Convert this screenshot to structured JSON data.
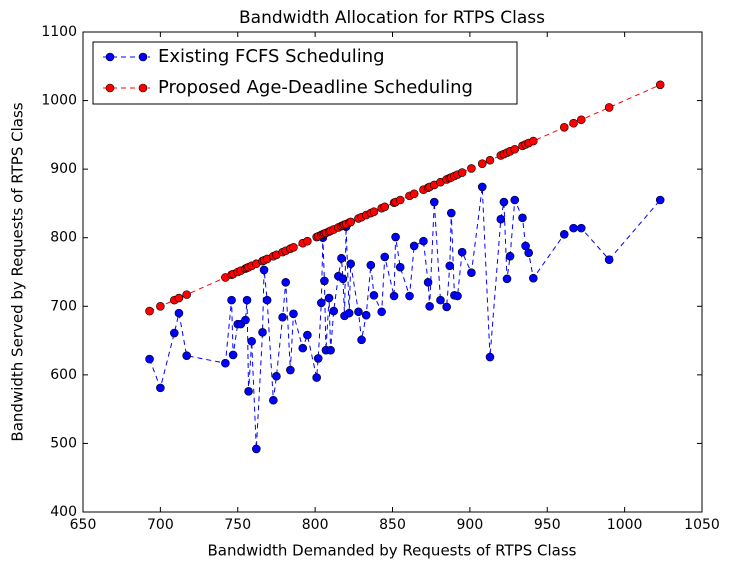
{
  "chart_data": {
    "type": "line",
    "title": "Bandwidth Allocation for RTPS Class",
    "x_label": "Bandwidth Demanded by Requests of RTPS Class",
    "y_label": "Bandwidth Served by Requests of RTPS Class",
    "x": [
      693,
      700,
      709,
      712,
      717,
      742,
      746,
      747,
      750,
      752,
      755,
      756,
      757,
      759,
      762,
      766,
      767,
      769,
      773,
      775,
      779,
      781,
      784,
      786,
      792,
      795,
      801,
      802,
      804,
      805,
      806,
      807,
      809,
      810,
      812,
      815,
      817,
      818,
      819,
      820,
      822,
      823,
      828,
      830,
      833,
      836,
      838,
      843,
      845,
      851,
      852,
      855,
      861,
      864,
      870,
      873,
      874,
      877,
      881,
      885,
      887,
      888,
      890,
      892,
      895,
      901,
      908,
      913,
      920,
      922,
      924,
      926,
      929,
      934,
      936,
      938,
      941,
      961,
      967,
      972,
      990,
      1023
    ],
    "series": [
      {
        "name": "Existing FCFS Scheduling",
        "color": "#0000ff",
        "values": [
          623,
          581,
          661,
          690,
          628,
          617,
          709,
          629,
          674,
          674,
          680,
          709,
          576,
          649,
          492,
          662,
          753,
          709,
          563,
          598,
          684,
          735,
          607,
          689,
          639,
          658,
          596,
          624,
          705,
          800,
          737,
          636,
          712,
          636,
          693,
          744,
          770,
          740,
          686,
          816,
          690,
          762,
          692,
          651,
          687,
          760,
          716,
          692,
          772,
          715,
          801,
          757,
          715,
          788,
          795,
          735,
          700,
          852,
          709,
          699,
          759,
          836,
          716,
          715,
          779,
          749,
          874,
          626,
          827,
          852,
          740,
          773,
          855,
          829,
          788,
          778,
          741,
          805,
          814,
          814,
          768,
          855
        ]
      },
      {
        "name": "Proposed Age-Deadline Scheduling",
        "color": "#ff0000",
        "values": [
          693,
          700,
          709,
          712,
          717,
          742,
          746,
          747,
          750,
          752,
          755,
          756,
          757,
          759,
          762,
          766,
          767,
          769,
          773,
          775,
          779,
          781,
          784,
          786,
          792,
          795,
          801,
          802,
          804,
          805,
          806,
          807,
          809,
          810,
          812,
          815,
          817,
          818,
          819,
          820,
          822,
          823,
          828,
          830,
          833,
          836,
          838,
          843,
          845,
          851,
          852,
          855,
          861,
          864,
          870,
          873,
          874,
          877,
          881,
          885,
          887,
          888,
          890,
          892,
          895,
          901,
          908,
          913,
          920,
          922,
          924,
          926,
          929,
          934,
          936,
          938,
          941,
          961,
          967,
          972,
          990,
          1023
        ]
      }
    ],
    "xlim": [
      650,
      1050
    ],
    "xticks": [
      650,
      700,
      750,
      800,
      850,
      900,
      950,
      1000,
      1050
    ],
    "ylim": [
      400,
      1100
    ],
    "yticks": [
      400,
      500,
      600,
      700,
      800,
      900,
      1000,
      1100
    ],
    "legend": "upper left"
  }
}
